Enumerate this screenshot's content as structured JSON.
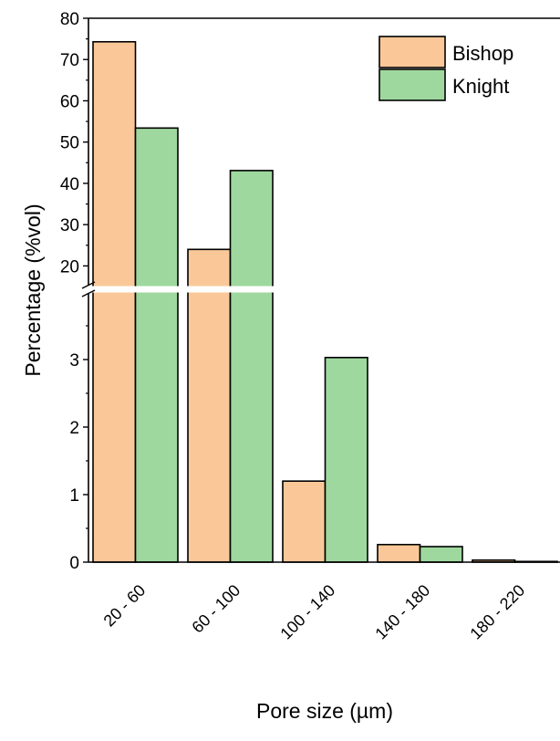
{
  "chart_data": {
    "type": "bar",
    "xlabel": "Pore size (µm)",
    "ylabel": "Percentage (%vol)",
    "categories": [
      "20 - 60",
      "60 - 100",
      "100 - 140",
      "140 - 180",
      "180 - 220"
    ],
    "series": [
      {
        "name": "Bishop",
        "color": "#FAC898",
        "values": [
          74.3,
          24.0,
          1.2,
          0.26,
          0.03
        ]
      },
      {
        "name": "Knight",
        "color": "#9ED89E",
        "values": [
          53.4,
          43.1,
          3.03,
          0.23,
          0.01
        ]
      }
    ],
    "y_axis_break": {
      "lower_range": [
        0,
        4
      ],
      "upper_range": [
        15,
        80
      ],
      "lower_ticks": [
        0,
        1,
        2,
        3
      ],
      "upper_ticks": [
        20,
        30,
        40,
        50,
        60,
        70,
        80
      ]
    },
    "legend": {
      "position": "top-right"
    },
    "grid": false
  }
}
